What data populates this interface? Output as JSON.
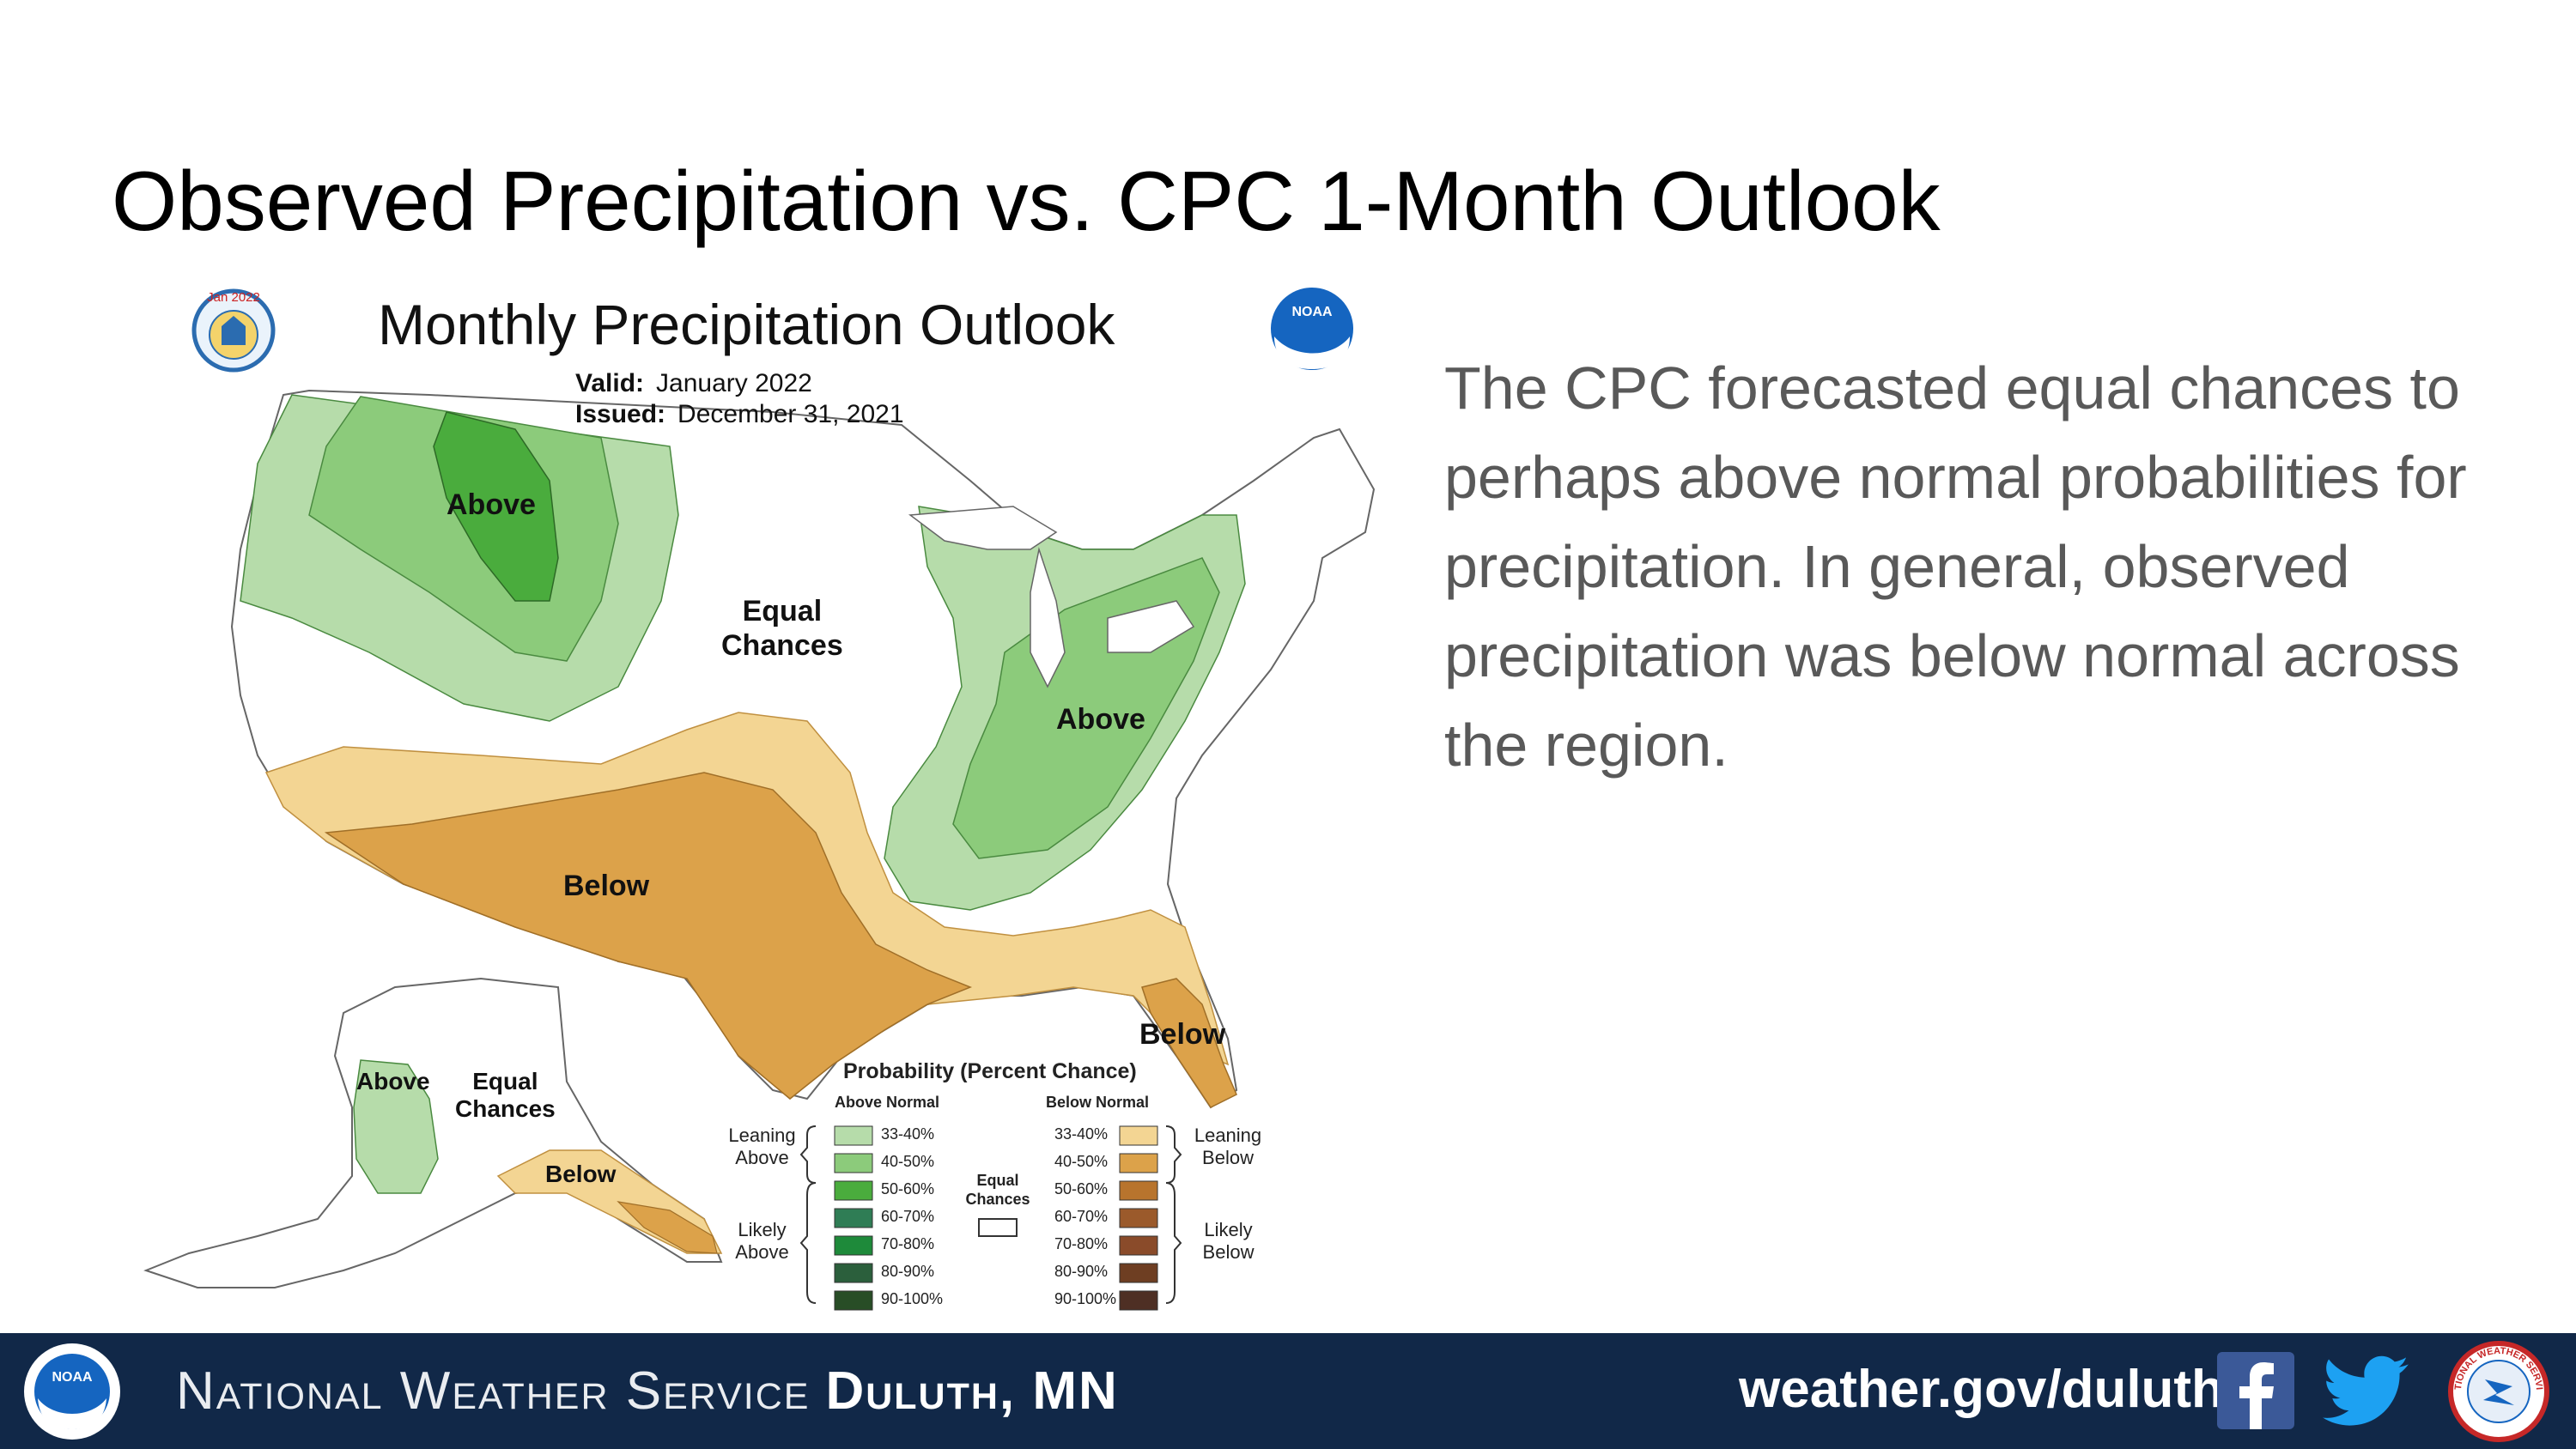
{
  "slide": {
    "title": "Observed Precipitation vs. CPC 1-Month Outlook",
    "body": "The CPC forecasted equal chances to perhaps above normal probabilities for precipitation. In general, observed precipitation was below normal across the region."
  },
  "map": {
    "title": "Monthly Precipitation Outlook",
    "valid_label": "Valid:",
    "valid_value": "January 2022",
    "issued_label": "Issued:",
    "issued_value": "December 31, 2021",
    "seal_text": "Jan 2022",
    "noaa_logo_text": "NOAA",
    "labels": {
      "above_northwest": "Above",
      "equal_chances_1": "Equal",
      "equal_chances_2": "Chances",
      "above_east": "Above",
      "below_southwest": "Below",
      "below_florida": "Below",
      "alaska_above": "Above",
      "alaska_equal_1": "Equal",
      "alaska_equal_2": "Chances",
      "alaska_below": "Below"
    },
    "legend": {
      "title": "Probability (Percent Chance)",
      "above_header": "Above Normal",
      "below_header": "Below Normal",
      "leaning_above_1": "Leaning",
      "leaning_above_2": "Above",
      "likely_above_1": "Likely",
      "likely_above_2": "Above",
      "leaning_below_1": "Leaning",
      "leaning_below_2": "Below",
      "likely_below_1": "Likely",
      "likely_below_2": "Below",
      "equal_1": "Equal",
      "equal_2": "Chances",
      "above_items": [
        {
          "label": "33-40%",
          "color": "#b6dcaa"
        },
        {
          "label": "40-50%",
          "color": "#8ccb7b"
        },
        {
          "label": "50-60%",
          "color": "#4aac3d"
        },
        {
          "label": "60-70%",
          "color": "#2f7d55"
        },
        {
          "label": "70-80%",
          "color": "#1e8a3a"
        },
        {
          "label": "80-90%",
          "color": "#2b5f3c"
        },
        {
          "label": "90-100%",
          "color": "#284d26"
        }
      ],
      "below_items": [
        {
          "label": "33-40%",
          "color": "#f3d593"
        },
        {
          "label": "40-50%",
          "color": "#dca24a"
        },
        {
          "label": "50-60%",
          "color": "#b8742d"
        },
        {
          "label": "60-70%",
          "color": "#9b5a2b"
        },
        {
          "label": "70-80%",
          "color": "#8a4b2a"
        },
        {
          "label": "80-90%",
          "color": "#6e3e22"
        },
        {
          "label": "90-100%",
          "color": "#4e2f24"
        }
      ]
    }
  },
  "footer": {
    "org": "National Weather Service",
    "office": "Duluth, MN",
    "url": "weather.gov/duluth",
    "noaa_logo_text": "NOAA",
    "nws_logo_text": "NATIONAL WEATHER SERVICE"
  },
  "colors": {
    "footer_bg": "#112848",
    "body_text": "#595959",
    "above_light": "#b6dcaa",
    "above_mid": "#8ccb7b",
    "above_dark": "#4aac3d",
    "below_light": "#f3d593",
    "below_mid": "#dca24a"
  }
}
